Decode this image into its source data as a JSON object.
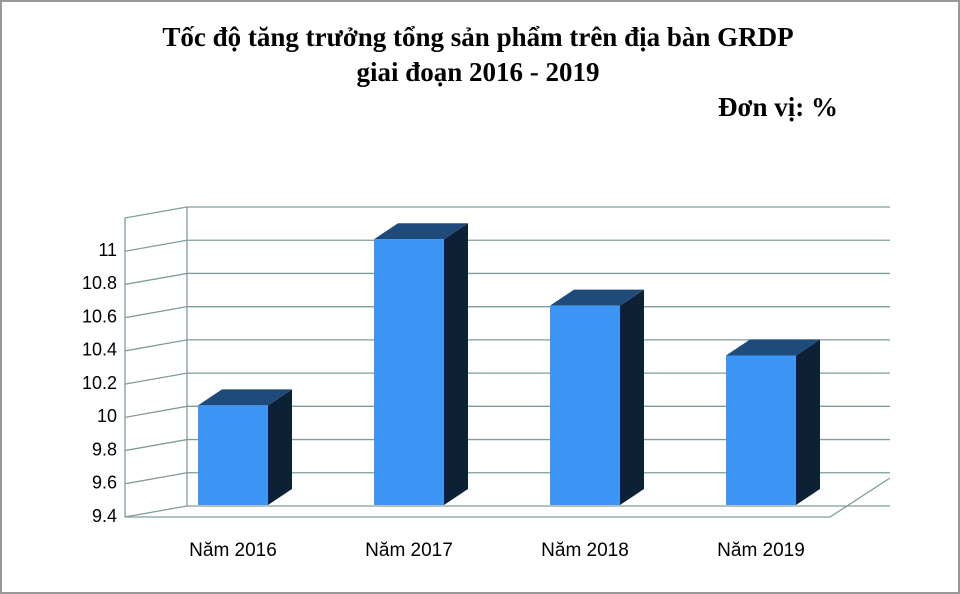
{
  "chart_data": {
    "type": "bar3d",
    "title": [
      "Tốc độ tăng trưởng tổng sản phẩm trên địa bàn GRDP",
      "giai đoạn 2016 - 2019"
    ],
    "unit_label": "Đơn vị: %",
    "categories": [
      "Năm 2016",
      "Năm 2017",
      "Năm 2018",
      "Năm 2019"
    ],
    "values": [
      10.0,
      11.0,
      10.6,
      10.3
    ],
    "color": "#3d95f5",
    "ylim": [
      9.4,
      11.2
    ],
    "yticks": [
      9.4,
      9.6,
      9.8,
      10,
      10.2,
      10.4,
      10.6,
      10.8,
      11
    ],
    "grid": true
  }
}
